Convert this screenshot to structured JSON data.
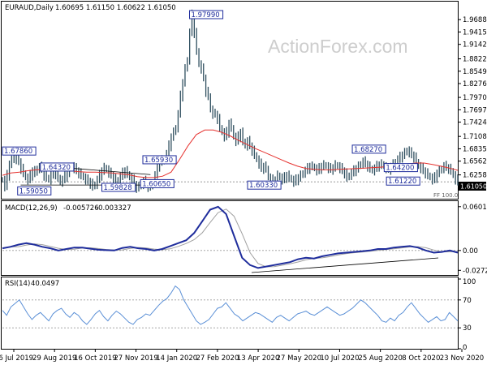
{
  "chart_data": {
    "type": "candlestick",
    "watermark": "ActionForex.com",
    "x_ticks": [
      "16 Jul 2019",
      "29 Aug 2019",
      "16 Oct 2019",
      "27 Nov 2019",
      "14 Jan 2020",
      "27 Feb 2020",
      "13 Apr 2020",
      "27 May 2020",
      "10 Jul 2020",
      "25 Aug 2020",
      "8 Oct 2020",
      "23 Nov 2020"
    ],
    "price": {
      "title": "EURAUD,Daily",
      "ohlc": "1.60695 1.61150 1.60622 1.61050",
      "ylim": [
        1.575,
        2.005
      ],
      "y_ticks": [
        "1.96883",
        "1.94152",
        "1.91421",
        "1.88221",
        "1.85490",
        "1.82760",
        "1.79701",
        "1.76970",
        "1.74240",
        "1.71085",
        "1.68355",
        "1.65624",
        "1.62585",
        "1.59854"
      ],
      "current_price": "1.61050",
      "current_price_value": 1.6105,
      "ff_label": "FF 100.0",
      "close_series": [
        1.615,
        1.6,
        1.625,
        1.65,
        1.658,
        1.665,
        1.66,
        1.655,
        1.64,
        1.63,
        1.62,
        1.615,
        1.625,
        1.635,
        1.63,
        1.64,
        1.643,
        1.638,
        1.625,
        1.62,
        1.615,
        1.625,
        1.632,
        1.628,
        1.62,
        1.61,
        1.615,
        1.622,
        1.63,
        1.64,
        1.645,
        1.64,
        1.635,
        1.63,
        1.625,
        1.62,
        1.615,
        1.612,
        1.607,
        1.6,
        1.605,
        1.615,
        1.625,
        1.635,
        1.642,
        1.638,
        1.63,
        1.625,
        1.618,
        1.615,
        1.612,
        1.622,
        1.63,
        1.635,
        1.628,
        1.62,
        1.615,
        1.605,
        1.598,
        1.6,
        1.605,
        1.612,
        1.605,
        1.6,
        1.6,
        1.61,
        1.625,
        1.645,
        1.659,
        1.655,
        1.66,
        1.672,
        1.69,
        1.71,
        1.72,
        1.73,
        1.76,
        1.8,
        1.83,
        1.86,
        1.88,
        1.94,
        1.979,
        1.94,
        1.9,
        1.87,
        1.86,
        1.84,
        1.81,
        1.8,
        1.77,
        1.76,
        1.76,
        1.75,
        1.73,
        1.72,
        1.71,
        1.72,
        1.74,
        1.73,
        1.71,
        1.7,
        1.71,
        1.72,
        1.7,
        1.69,
        1.7,
        1.69,
        1.68,
        1.67,
        1.66,
        1.65,
        1.64,
        1.645,
        1.64,
        1.62,
        1.615,
        1.61,
        1.615,
        1.625,
        1.62,
        1.615,
        1.62,
        1.625,
        1.62,
        1.615,
        1.61,
        1.615,
        1.62,
        1.625,
        1.63,
        1.635,
        1.64,
        1.645,
        1.645,
        1.64,
        1.635,
        1.64,
        1.645,
        1.648,
        1.645,
        1.64,
        1.638,
        1.642,
        1.648,
        1.645,
        1.64,
        1.635,
        1.63,
        1.62,
        1.625,
        1.63,
        1.635,
        1.64,
        1.645,
        1.65,
        1.655,
        1.65,
        1.645,
        1.64,
        1.635,
        1.64,
        1.645,
        1.648,
        1.65,
        1.645,
        1.64,
        1.638,
        1.645,
        1.65,
        1.655,
        1.66,
        1.665,
        1.67,
        1.675,
        1.68,
        1.675,
        1.67,
        1.665,
        1.655,
        1.645,
        1.64,
        1.635,
        1.63,
        1.625,
        1.62,
        1.615,
        1.62,
        1.63,
        1.635,
        1.64,
        1.645,
        1.642,
        1.64,
        1.635,
        1.625,
        1.615,
        1.61
      ],
      "sma_series": [
        1.625,
        1.63,
        1.632,
        1.635,
        1.637,
        1.638,
        1.638,
        1.637,
        1.635,
        1.633,
        1.632,
        1.632,
        1.631,
        1.63,
        1.628,
        1.626,
        1.622,
        1.62,
        1.62,
        1.623,
        1.632,
        1.66,
        1.69,
        1.715,
        1.725,
        1.725,
        1.72,
        1.712,
        1.702,
        1.693,
        1.684,
        1.676,
        1.668,
        1.66,
        1.652,
        1.645,
        1.64,
        1.638,
        1.637,
        1.637,
        1.638,
        1.639,
        1.64,
        1.641,
        1.642,
        1.643,
        1.645,
        1.648,
        1.65,
        1.652,
        1.652,
        1.649,
        1.645,
        1.641,
        1.636
      ],
      "annotations": [
        {
          "label": "1.97990",
          "x": 0.4475,
          "y": 1.9799
        },
        {
          "label": "1.68270",
          "x": 0.805,
          "y": 1.6827
        },
        {
          "label": "1.65930",
          "x": 0.345,
          "y": 1.6593
        },
        {
          "label": "1.64320",
          "x": 0.12,
          "y": 1.6432
        },
        {
          "label": "1.64200",
          "x": 0.875,
          "y": 1.642
        },
        {
          "label": "1.59050",
          "x": 0.07,
          "y": 1.5905
        },
        {
          "label": "1.59828",
          "x": 0.255,
          "y": 1.5983
        },
        {
          "label": "1.60650",
          "x": 0.34,
          "y": 1.6065
        },
        {
          "label": "1.60330",
          "x": 0.575,
          "y": 1.6033
        },
        {
          "label": "1.61220",
          "x": 0.88,
          "y": 1.6122
        },
        {
          "label": "1.67860",
          "x": 0.0,
          "y": 1.6786
        }
      ]
    },
    "macd": {
      "title": "MACD(12,26,9)",
      "value1": "-0.005726",
      "value2": "-0.003327",
      "ylim": [
        -0.0325,
        0.0655
      ],
      "y_ticks": [
        "0.060165",
        "0.00",
        "-0.02725"
      ],
      "series": [
        0.003,
        0.005,
        0.008,
        0.01,
        0.008,
        0.005,
        0.003,
        0.0,
        0.002,
        0.004,
        0.004,
        0.0025,
        0.001,
        0.0005,
        0.0,
        0.0035,
        0.005,
        0.003,
        0.002,
        0.0,
        0.002,
        0.006,
        0.01,
        0.014,
        0.024,
        0.04,
        0.056,
        0.06,
        0.05,
        0.02,
        -0.01,
        -0.02,
        -0.024,
        -0.022,
        -0.02,
        -0.018,
        -0.016,
        -0.012,
        -0.01,
        -0.011,
        -0.008,
        -0.006,
        -0.004,
        -0.003,
        -0.002,
        -0.001,
        0.0,
        0.002,
        0.002,
        0.004,
        0.005,
        0.006,
        0.004,
        0.0,
        -0.003,
        -0.002,
        0.0,
        -0.003
      ]
    },
    "rsi": {
      "title": "RSI(14)",
      "value": "40.0497",
      "ylim": [
        0,
        100
      ],
      "y_ticks": [
        "100",
        "70",
        "30",
        "0"
      ],
      "series": [
        55,
        48,
        60,
        65,
        70,
        60,
        50,
        42,
        48,
        52,
        46,
        40,
        50,
        55,
        58,
        50,
        45,
        52,
        48,
        40,
        35,
        42,
        50,
        55,
        46,
        40,
        48,
        54,
        50,
        44,
        38,
        35,
        42,
        45,
        50,
        48,
        55,
        62,
        68,
        72,
        80,
        90,
        85,
        70,
        60,
        50,
        40,
        35,
        38,
        42,
        50,
        58,
        60,
        66,
        58,
        50,
        46,
        40,
        44,
        48,
        52,
        50,
        46,
        42,
        38,
        45,
        48,
        44,
        40,
        45,
        50,
        52,
        54,
        50,
        48,
        52,
        56,
        60,
        56,
        52,
        48,
        50,
        54,
        58,
        64,
        70,
        66,
        60,
        54,
        48,
        40,
        38,
        44,
        40,
        48,
        52,
        60,
        66,
        58,
        50,
        44,
        38,
        42,
        46,
        40,
        42,
        52,
        46,
        40
      ]
    }
  }
}
